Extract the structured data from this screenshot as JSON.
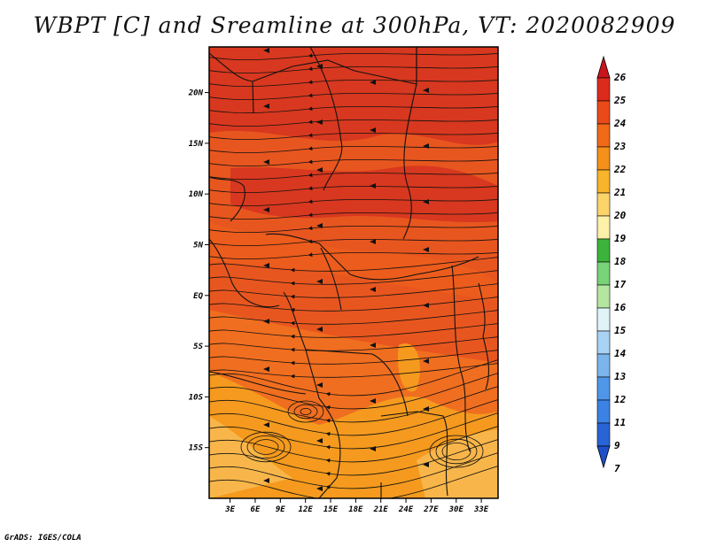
{
  "title": "WBPT [C] and Sreamline at 300hPa, VT: 2020082909",
  "credit": "GrADS: IGES/COLA",
  "map": {
    "lon_labels": [
      "3E",
      "6E",
      "9E",
      "12E",
      "15E",
      "18E",
      "21E",
      "24E",
      "27E",
      "30E",
      "33E"
    ],
    "lon_values": [
      3,
      6,
      9,
      12,
      15,
      18,
      21,
      24,
      27,
      30,
      33
    ],
    "lat_labels": [
      "20N",
      "15N",
      "10N",
      "5N",
      "EQ",
      "5S",
      "10S",
      "15S"
    ],
    "lat_values": [
      20,
      15,
      10,
      5,
      0,
      -5,
      -10,
      -15
    ],
    "lon_range": [
      0.5,
      35
    ],
    "lat_range": [
      -20,
      24.5
    ],
    "fill_colors": {
      "warm_top": "#d8381f",
      "main": "#e8561f",
      "mid": "#f06e1f",
      "south": "#f59a1e",
      "light": "#f8b64a"
    }
  },
  "colorbar": {
    "labels": [
      "26",
      "25",
      "24",
      "23",
      "22",
      "21",
      "20",
      "19",
      "18",
      "17",
      "16",
      "15",
      "14",
      "13",
      "12",
      "11",
      "9",
      "7"
    ],
    "colors": [
      "#c8141c",
      "#dc2a1c",
      "#ea4a1a",
      "#f06a18",
      "#f5901a",
      "#f8b42a",
      "#fbd46a",
      "#fdf0a8",
      "#3cb43c",
      "#78d278",
      "#b4e6a0",
      "#e0f4f8",
      "#a8d2f4",
      "#7cb4ec",
      "#5096e8",
      "#3c82e4",
      "#2864d6",
      "#1e50c8"
    ]
  }
}
